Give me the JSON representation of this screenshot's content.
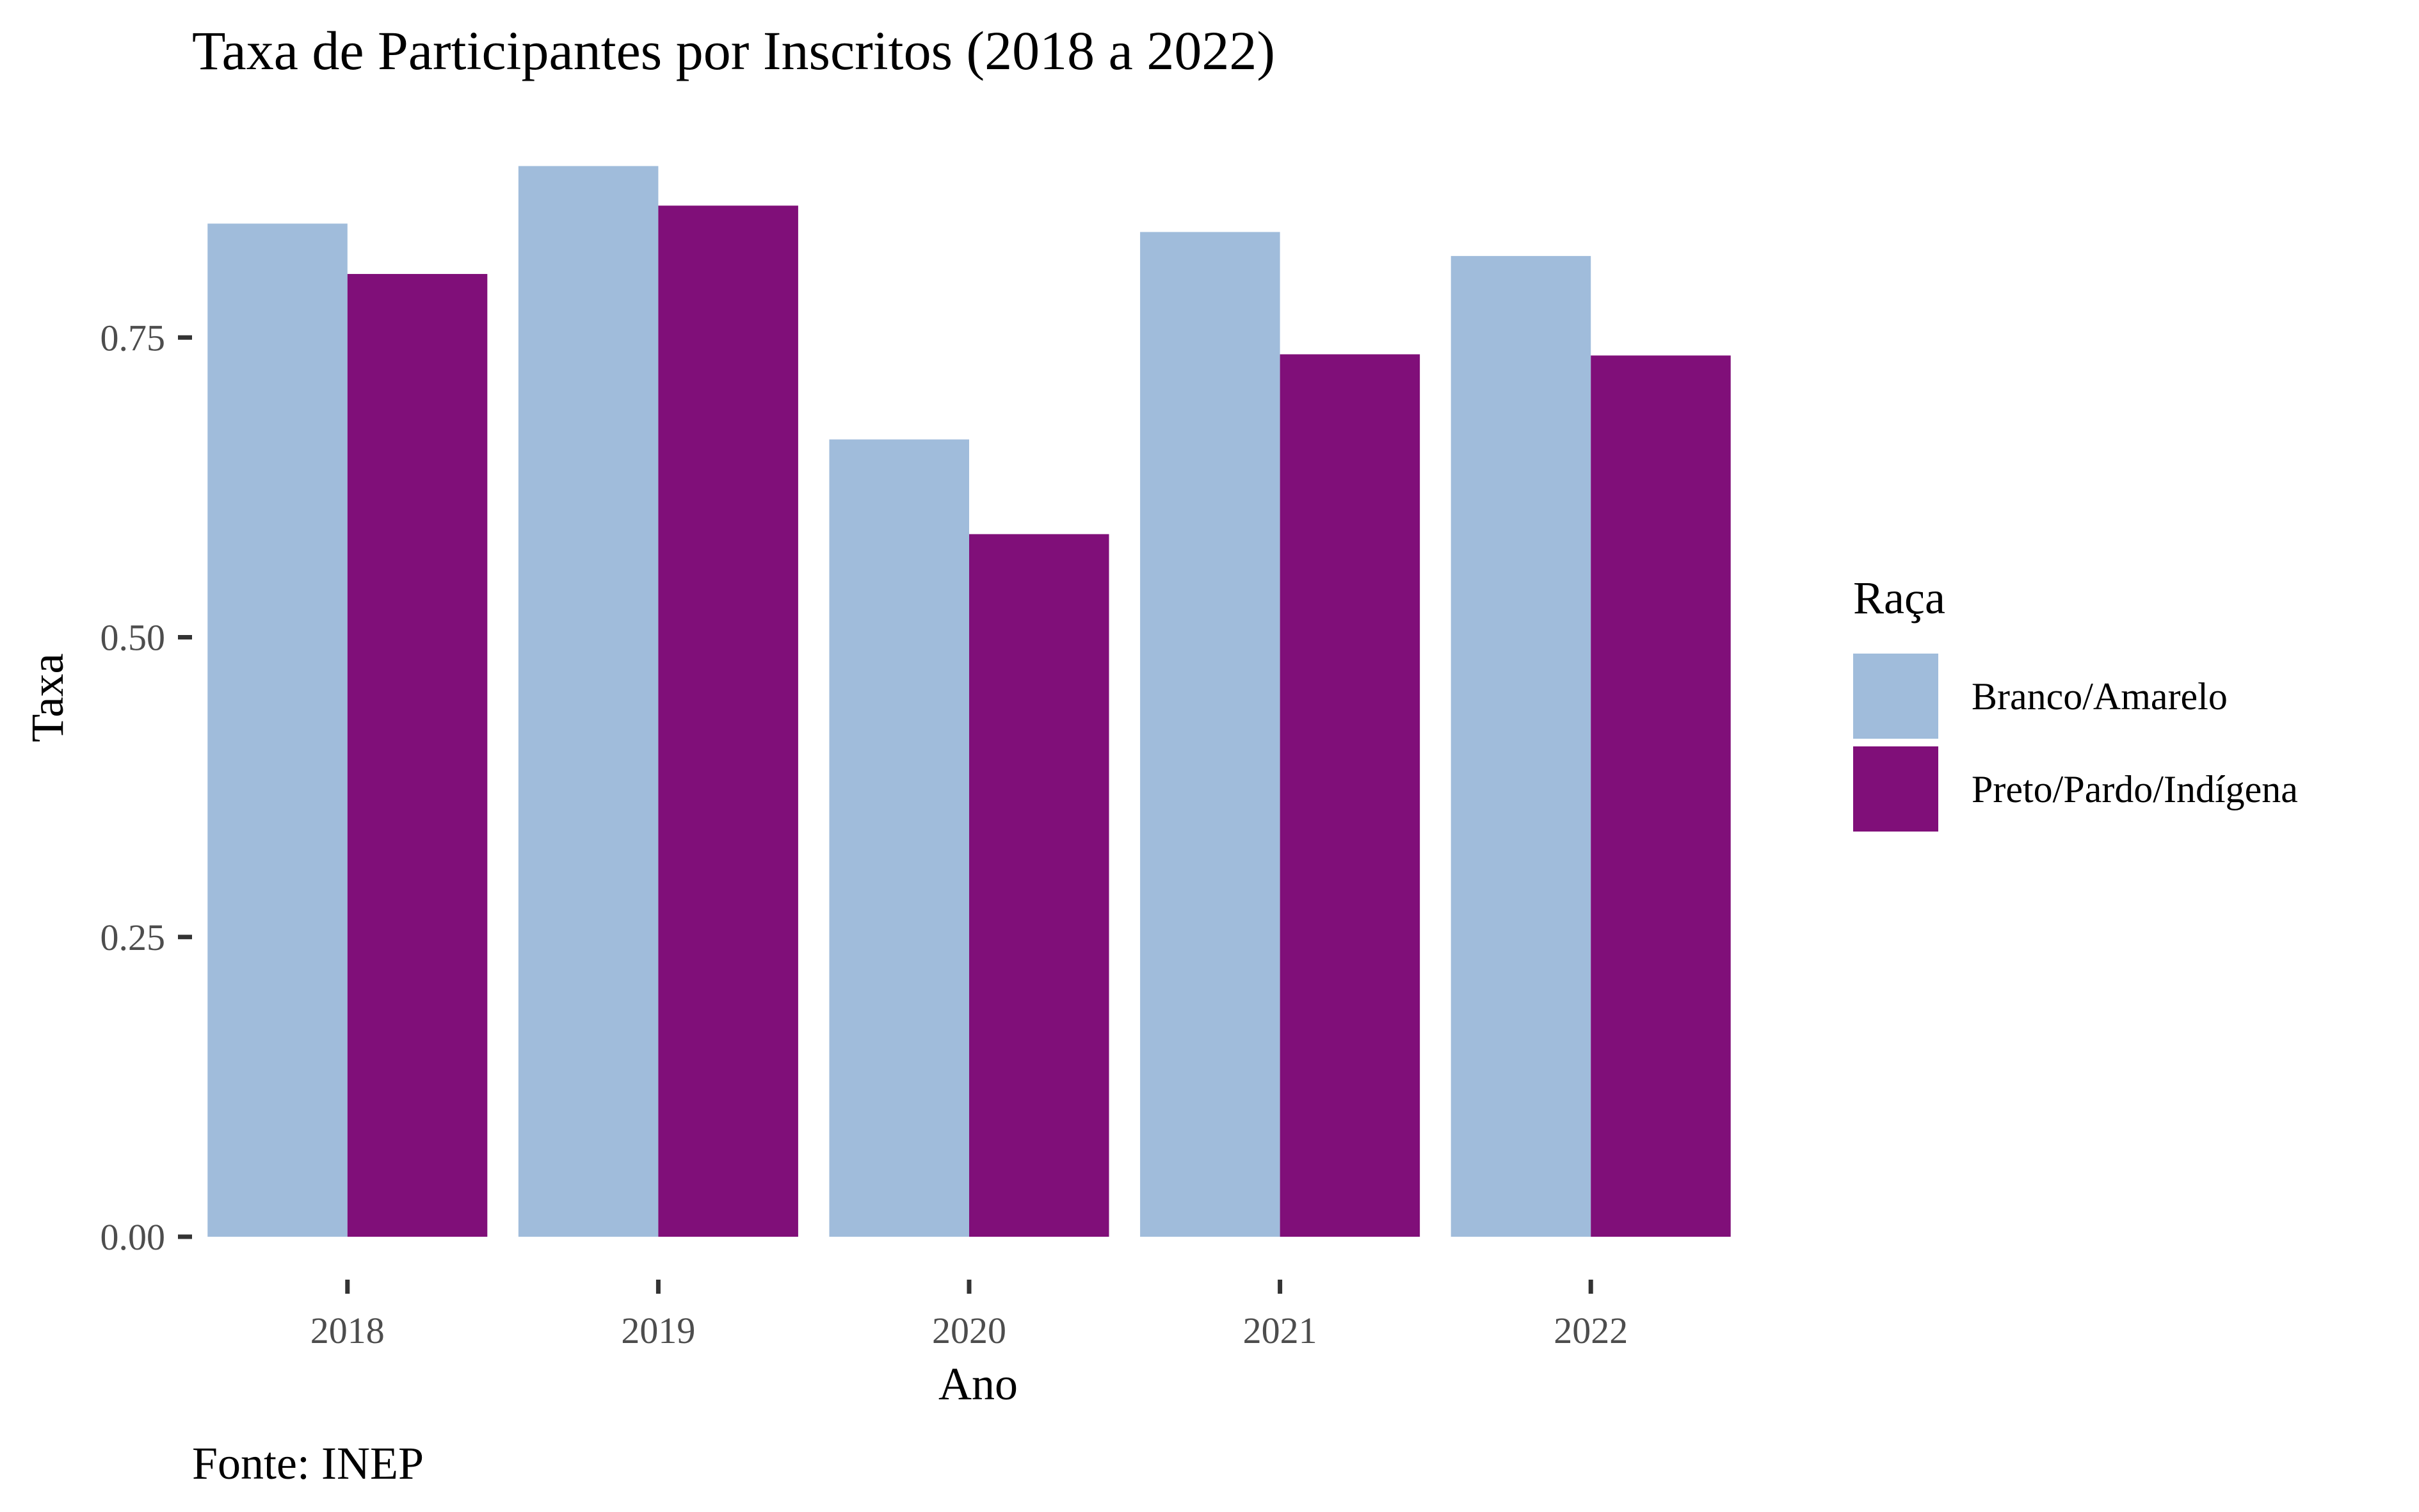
{
  "colors": {
    "Branco/Amarelo": "#a0bcdb",
    "Preto/Pardo/Indígena": "#800f79",
    "tick_mark": "#333333"
  },
  "chart_data": {
    "type": "bar",
    "title": "Taxa de Participantes por Inscritos (2018 a 2022)",
    "xlabel": "Ano",
    "ylabel": "Taxa",
    "caption": "Fonte: INEP",
    "categories": [
      "2018",
      "2019",
      "2020",
      "2021",
      "2022"
    ],
    "series": [
      {
        "name": "Branco/Amarelo",
        "values": [
          0.845,
          0.893,
          0.665,
          0.838,
          0.818
        ]
      },
      {
        "name": "Preto/Pardo/Indígena",
        "values": [
          0.803,
          0.86,
          0.586,
          0.736,
          0.735
        ]
      }
    ],
    "ylim": [
      0,
      0.9
    ],
    "yticks": [
      0,
      0.25,
      0.5,
      0.75
    ],
    "ytick_labels": [
      "0.00",
      "0.25",
      "0.50",
      "0.75"
    ],
    "grid": false,
    "legend": {
      "title": "Raça",
      "position": "right"
    }
  }
}
